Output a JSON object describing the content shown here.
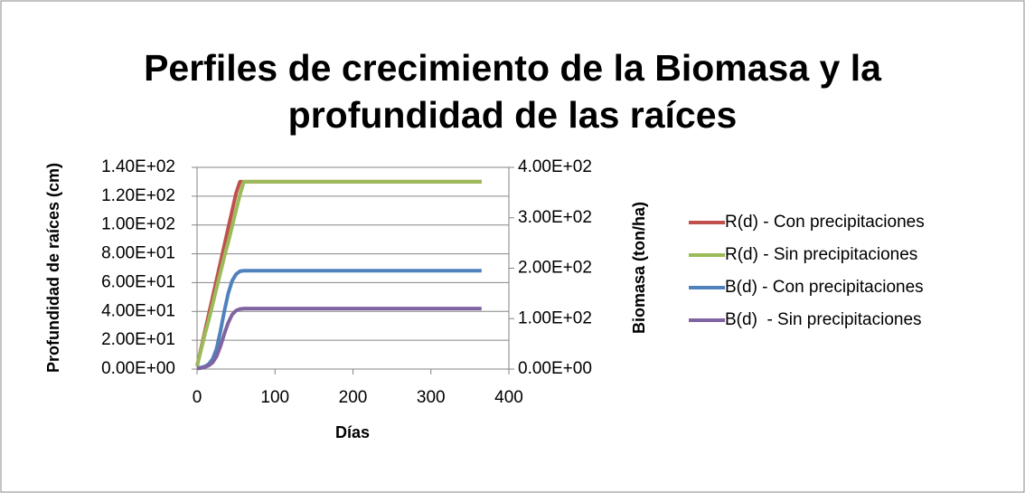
{
  "chart_data": {
    "type": "line",
    "title": "Perfiles de crecimiento de la Biomasa y la profundidad de las raíces",
    "title_lines": [
      "Perfiles de crecimiento de la Biomasa y la",
      "profundidad de las raíces"
    ],
    "xlabel": "Días",
    "ylabel": "Profundidad de raíces (cm)",
    "y2label": "Biomasa (ton/ha)",
    "x": [
      0,
      5,
      10,
      15,
      20,
      25,
      30,
      35,
      40,
      45,
      50,
      55,
      60,
      65,
      365
    ],
    "series": [
      {
        "name": "R(d) - Con precipitaciones",
        "color": "#c0504d",
        "values": [
          2,
          14,
          26,
          38,
          50,
          62,
          74,
          86,
          98,
          110,
          122,
          130,
          130,
          130,
          130
        ]
      },
      {
        "name": "R(d) - Sin precipitaciones",
        "color": "#9bbb59",
        "values": [
          2,
          13,
          24,
          34,
          45,
          56,
          67,
          78,
          88,
          99,
          110,
          121,
          130,
          130,
          130
        ]
      },
      {
        "name": "B(d) - Con precipitaciones",
        "color": "#4f81bd",
        "axis": "y2",
        "values": [
          2,
          3,
          5,
          10,
          20,
          40,
          75,
          115,
          150,
          175,
          188,
          194,
          195,
          195,
          195
        ]
      },
      {
        "name": "B(d)  - Sin precipitaciones",
        "color": "#8064a2",
        "axis": "y2",
        "values": [
          1,
          2,
          4,
          7,
          13,
          25,
          45,
          70,
          92,
          108,
          116,
          119,
          120,
          120,
          120
        ]
      }
    ],
    "xlim": [
      0,
      400
    ],
    "xticks": [
      0,
      100,
      200,
      300,
      400
    ],
    "ylim": [
      0,
      140
    ],
    "yticks": [
      {
        "value": 0,
        "label": "0.00E+00"
      },
      {
        "value": 20,
        "label": "2.00E+01"
      },
      {
        "value": 40,
        "label": "4.00E+01"
      },
      {
        "value": 60,
        "label": "6.00E+01"
      },
      {
        "value": 80,
        "label": "8.00E+01"
      },
      {
        "value": 100,
        "label": "1.00E+02"
      },
      {
        "value": 120,
        "label": "1.20E+02"
      },
      {
        "value": 140,
        "label": "1.40E+02"
      }
    ],
    "y2lim": [
      0,
      400
    ],
    "y2ticks": [
      {
        "value": 0,
        "label": "0.00E+00"
      },
      {
        "value": 100,
        "label": "1.00E+02"
      },
      {
        "value": 200,
        "label": "2.00E+02"
      },
      {
        "value": 300,
        "label": "3.00E+02"
      },
      {
        "value": 400,
        "label": "4.00E+02"
      }
    ],
    "grid": true,
    "legend": "right"
  }
}
